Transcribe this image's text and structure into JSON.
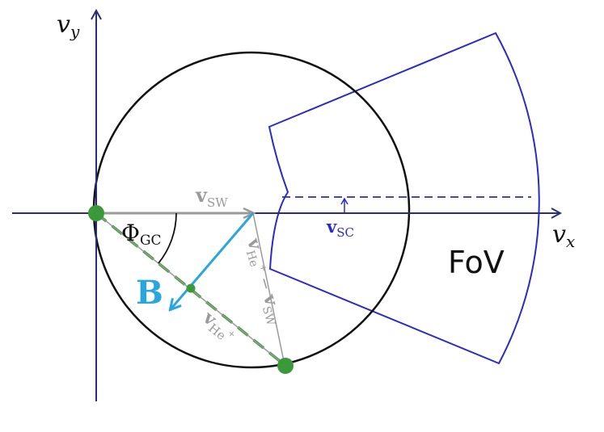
{
  "labels": {
    "vy_main": "v",
    "vy_sub": "y",
    "vx_main": "v",
    "vx_sub": "x",
    "vsw_main": "v",
    "vsw_sub": "SW",
    "vsc_main": "v",
    "vsc_sub": "SC",
    "phi_main": "Φ",
    "phi_sub": "GC",
    "b": "B",
    "fov": "FoV",
    "vhe_main": "v",
    "vhe_sub": "He",
    "vhe_sup": "+",
    "vdiff_v1": "v",
    "vdiff_sub1": "He",
    "vdiff_sup1": "+",
    "vdiff_minus": " − ",
    "vdiff_v2": "v",
    "vdiff_sub2": "SW"
  },
  "colors": {
    "axis": "#2b2b7a",
    "circle": "#111111",
    "fov": "#2a2acc",
    "gray_vector": "#9a9a9a",
    "b_vector": "#2aa6df",
    "green": "#3a9a3a",
    "text_dark": "#111111"
  }
}
